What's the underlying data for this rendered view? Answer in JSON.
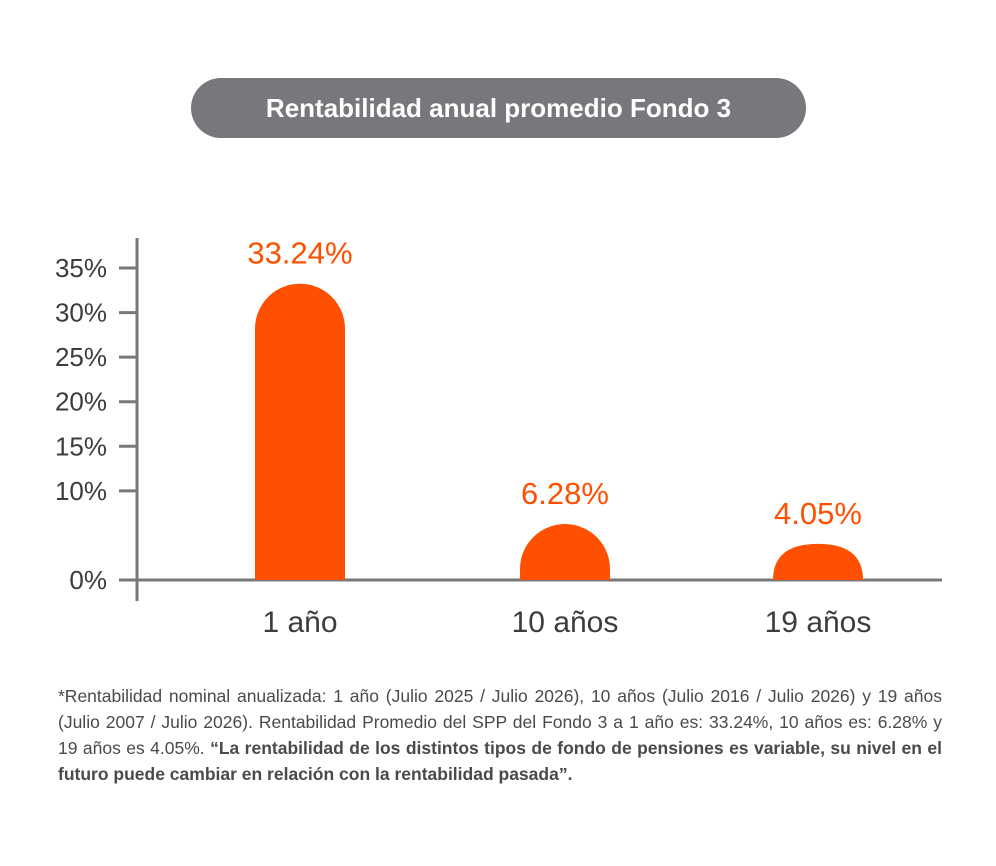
{
  "title": "Rentabilidad anual promedio Fondo 3",
  "chart_data": {
    "type": "bar",
    "categories": [
      "1 año",
      "10 años",
      "19 años"
    ],
    "values": [
      33.24,
      6.28,
      4.05
    ],
    "value_labels": [
      "33.24%",
      "6.28%",
      "4.05%"
    ],
    "y_ticks": [
      "0%",
      "10%",
      "15%",
      "20%",
      "25%",
      "30%",
      "35%"
    ],
    "y_tick_values": [
      0,
      10,
      15,
      20,
      25,
      30,
      35
    ],
    "ylim": [
      0,
      35
    ],
    "grid": false,
    "colors": {
      "bar": "#fe5000",
      "label": "#fe5000",
      "axis": "#77787b",
      "text": "#3c3c3c"
    }
  },
  "footnote": {
    "text": "*Rentabilidad nominal anualizada: 1 año (Julio 2025 / Julio 2026), 10 años (Julio 2016 / Julio 2026) y 19 años (Julio 2007 / Julio 2026). Rentabilidad Promedio del SPP del Fondo 3 a 1 año es: 33.24%, 10 años es: 6.28% y 19 años es 4.05%. ",
    "bold": "“La rentabilidad de los distintos tipos de fondo de pensiones es variable, su nivel en el futuro puede cambiar en relación con la rentabilidad pasada”."
  }
}
